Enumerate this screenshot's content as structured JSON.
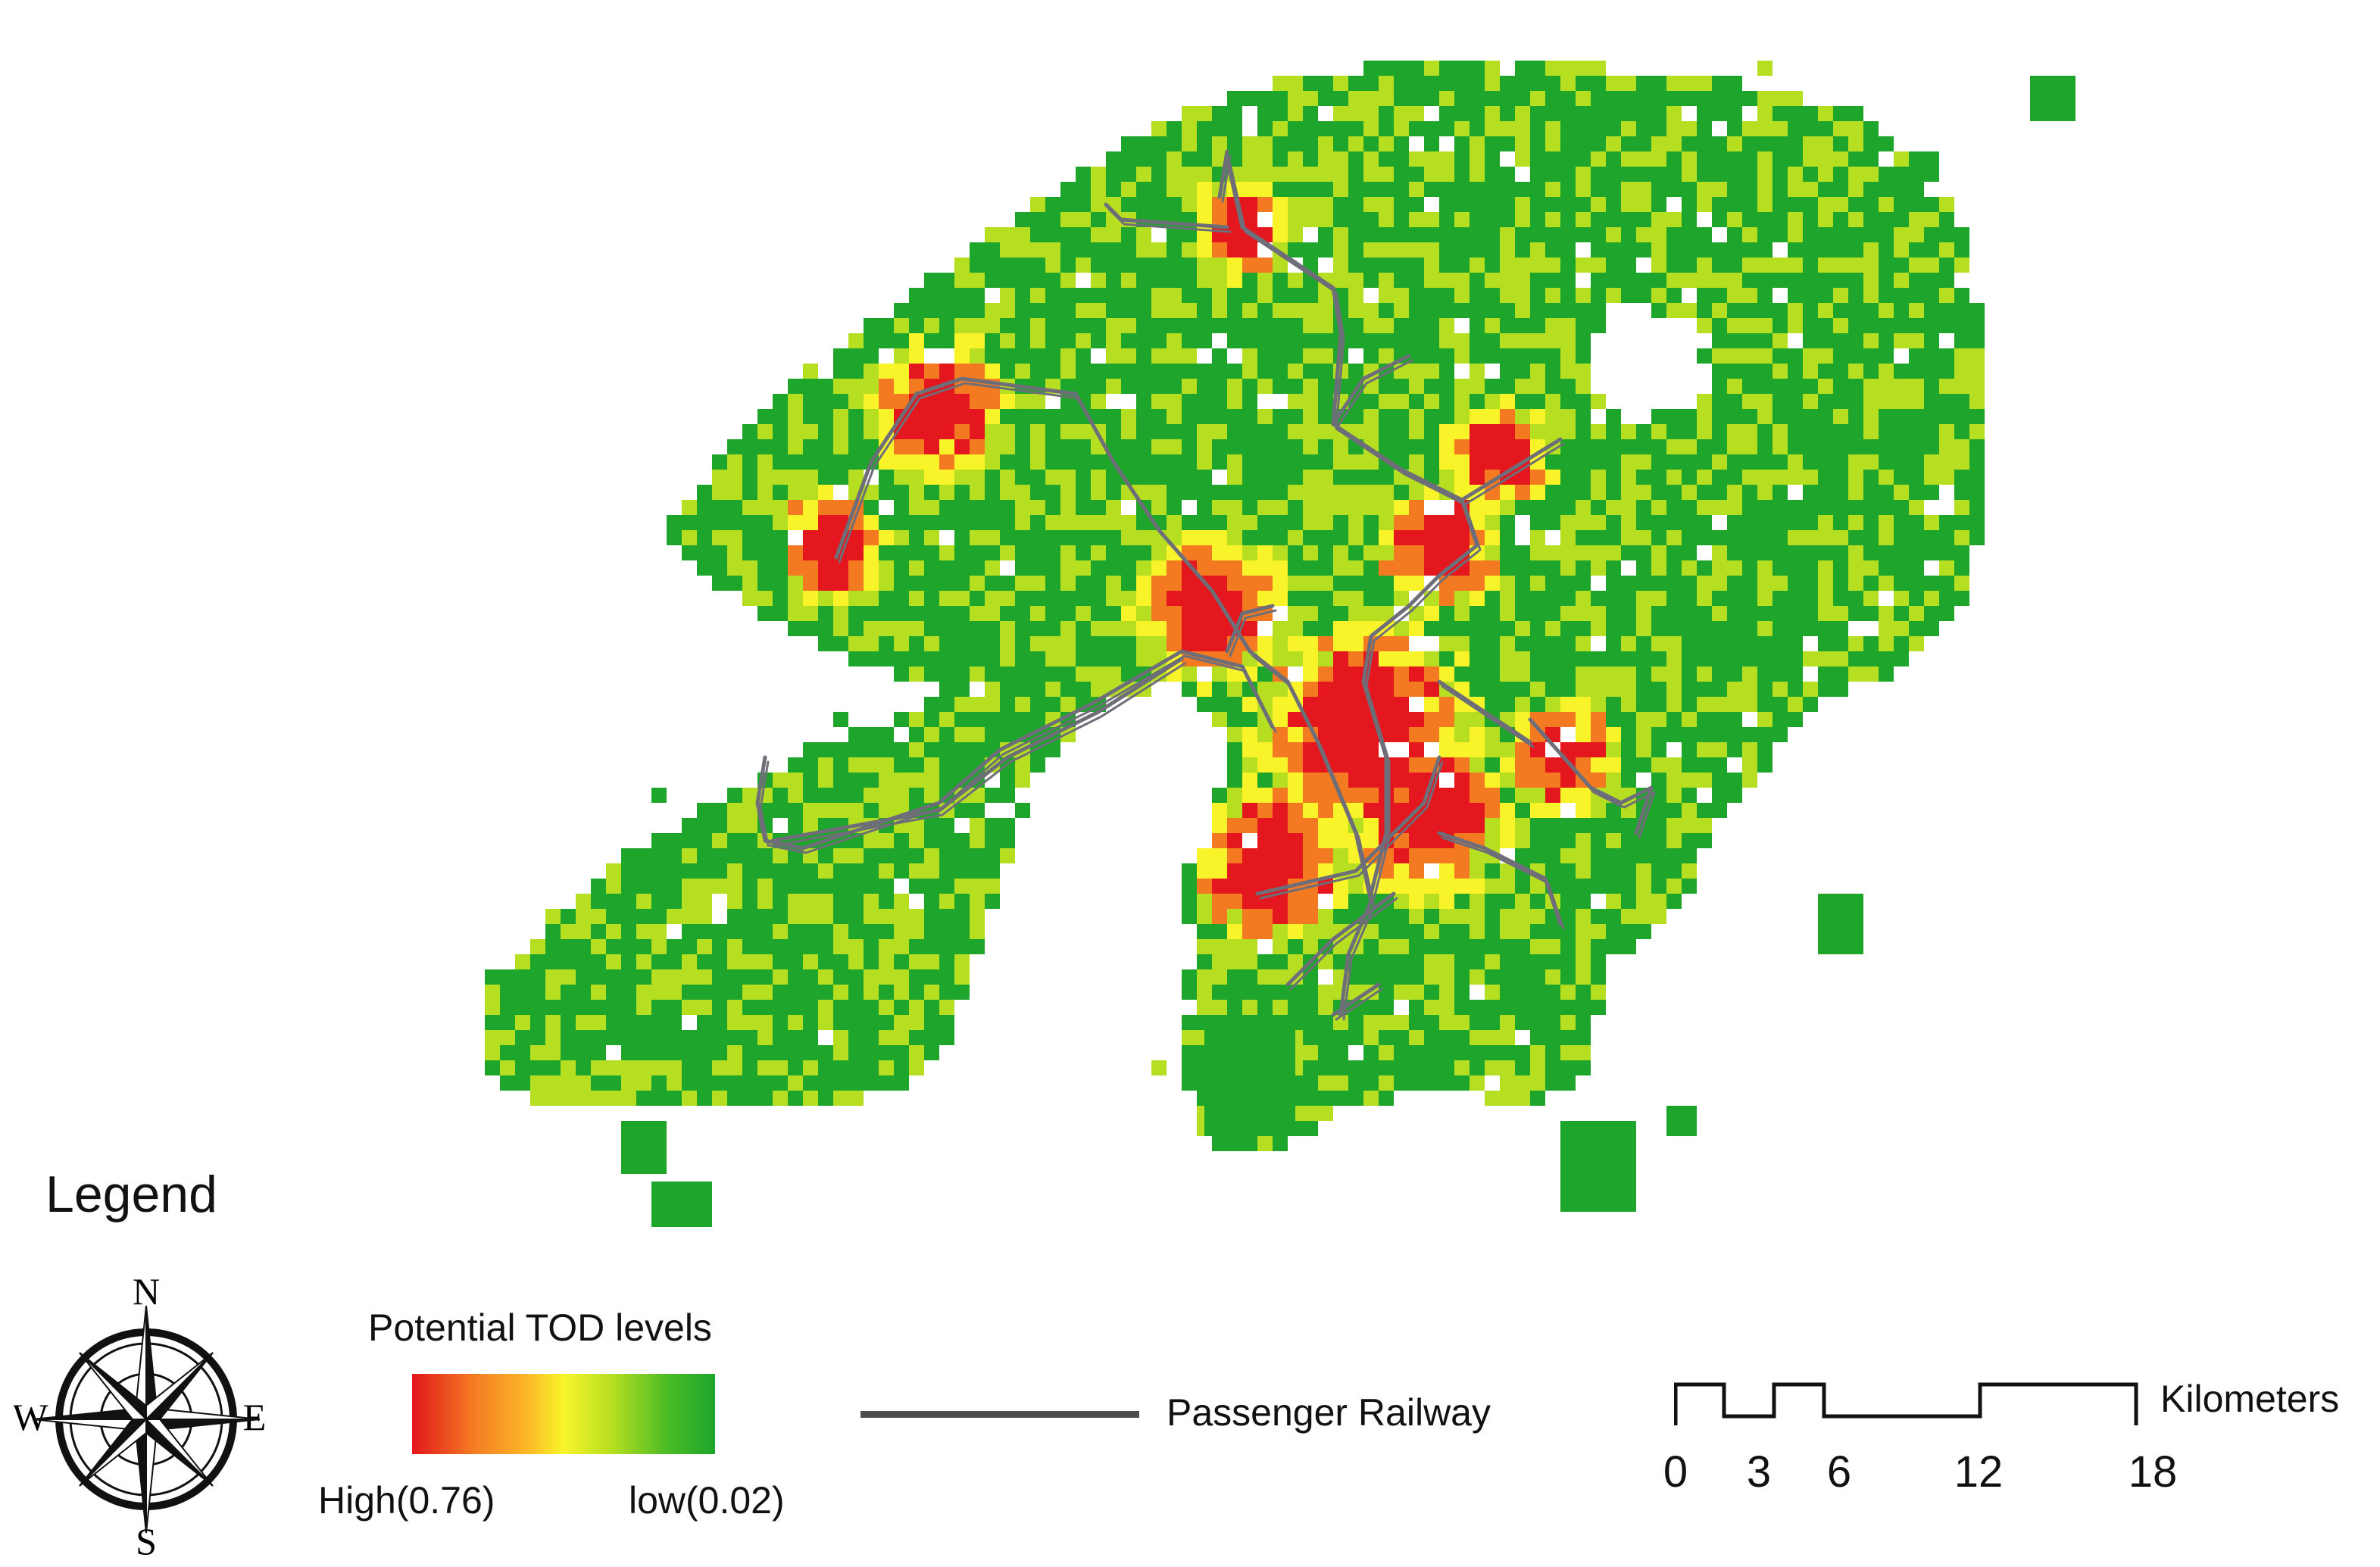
{
  "map": {
    "title": "Potential TOD levels",
    "colors": {
      "high": "#e4161e",
      "orange": "#f47a22",
      "yellow": "#f9f42a",
      "lightgreen": "#b7df21",
      "green": "#1ea52c",
      "railway": "#6e6e78"
    }
  },
  "legend": {
    "title": "Legend",
    "compass": {
      "n": "N",
      "s": "S",
      "e": "E",
      "w": "W"
    },
    "tod": {
      "title": "Potential TOD levels",
      "high_label": "High(0.76)",
      "low_label": "low(0.02)"
    },
    "railway": {
      "label": "Passenger Railway"
    },
    "scale": {
      "unit": "Kilometers",
      "ticks": [
        "0",
        "3",
        "6",
        "12",
        "18"
      ]
    }
  }
}
